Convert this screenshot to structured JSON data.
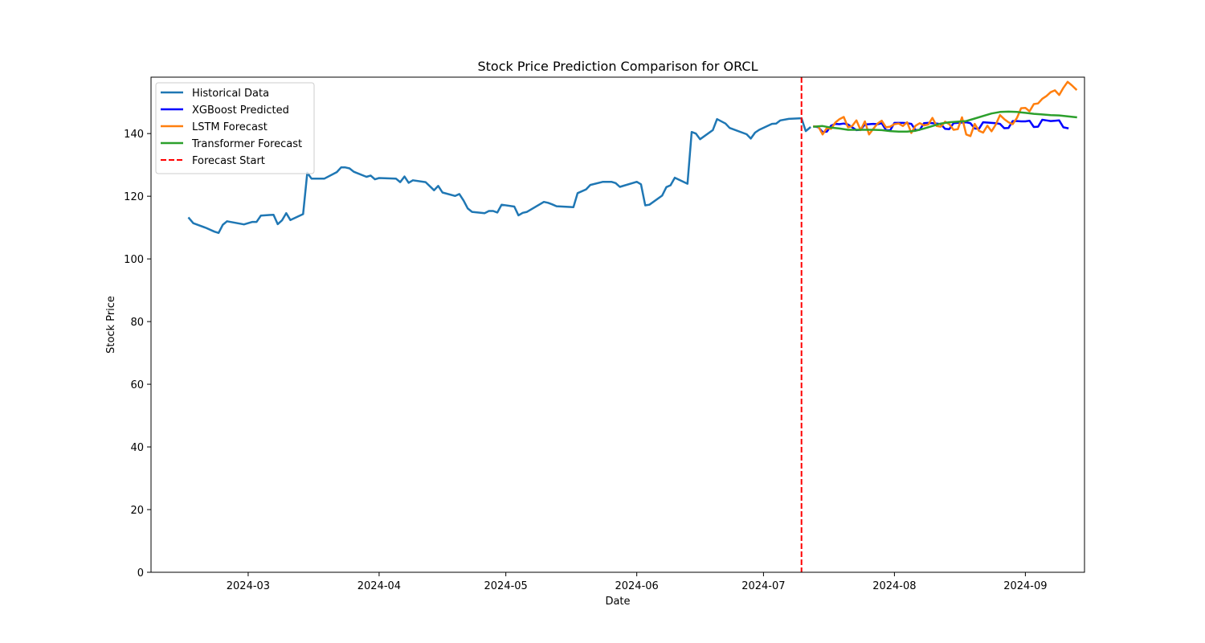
{
  "chart_data": {
    "type": "line",
    "title": "Stock Price Prediction Comparison for ORCL",
    "xlabel": "Date",
    "ylabel": "Stock Price",
    "xlim": [
      "2024-02-07",
      "2024-09-15"
    ],
    "ylim": [
      0,
      158
    ],
    "x_ticks": [
      "2024-03",
      "2024-04",
      "2024-05",
      "2024-06",
      "2024-07",
      "2024-08",
      "2024-09"
    ],
    "y_ticks": [
      0,
      20,
      40,
      60,
      80,
      100,
      120,
      140
    ],
    "grid": false,
    "legend_position": "top-left",
    "forecast_start": {
      "name": "Forecast Start",
      "x": "2024-07-10",
      "color": "#ff0000",
      "style": "dashed"
    },
    "series": [
      {
        "name": "Historical Data",
        "color": "#1f77b4",
        "points": [
          [
            "2024-02-16",
            113.0
          ],
          [
            "2024-02-17",
            111.4
          ],
          [
            "2024-02-20",
            109.9
          ],
          [
            "2024-02-22",
            108.7
          ],
          [
            "2024-02-23",
            108.3
          ],
          [
            "2024-02-24",
            110.9
          ],
          [
            "2024-02-25",
            112.0
          ],
          [
            "2024-02-29",
            111.0
          ],
          [
            "2024-03-02",
            111.8
          ],
          [
            "2024-03-03",
            111.8
          ],
          [
            "2024-03-04",
            113.8
          ],
          [
            "2024-03-06",
            114.0
          ],
          [
            "2024-03-07",
            114.1
          ],
          [
            "2024-03-08",
            111.1
          ],
          [
            "2024-03-09",
            112.3
          ],
          [
            "2024-03-10",
            114.6
          ],
          [
            "2024-03-11",
            112.4
          ],
          [
            "2024-03-14",
            114.3
          ],
          [
            "2024-03-15",
            127.5
          ],
          [
            "2024-03-16",
            125.6
          ],
          [
            "2024-03-19",
            125.6
          ],
          [
            "2024-03-22",
            127.7
          ],
          [
            "2024-03-23",
            129.2
          ],
          [
            "2024-03-24",
            129.2
          ],
          [
            "2024-03-25",
            128.9
          ],
          [
            "2024-03-26",
            127.8
          ],
          [
            "2024-03-29",
            126.2
          ],
          [
            "2024-03-30",
            126.6
          ],
          [
            "2024-03-31",
            125.4
          ],
          [
            "2024-04-01",
            125.8
          ],
          [
            "2024-04-05",
            125.6
          ],
          [
            "2024-04-06",
            124.5
          ],
          [
            "2024-04-07",
            126.3
          ],
          [
            "2024-04-08",
            124.3
          ],
          [
            "2024-04-09",
            125.1
          ],
          [
            "2024-04-12",
            124.5
          ],
          [
            "2024-04-14",
            121.9
          ],
          [
            "2024-04-15",
            123.3
          ],
          [
            "2024-04-16",
            121.2
          ],
          [
            "2024-04-19",
            120.1
          ],
          [
            "2024-04-20",
            120.7
          ],
          [
            "2024-04-21",
            118.6
          ],
          [
            "2024-04-22",
            116.1
          ],
          [
            "2024-04-23",
            115.0
          ],
          [
            "2024-04-26",
            114.6
          ],
          [
            "2024-04-27",
            115.3
          ],
          [
            "2024-04-28",
            115.3
          ],
          [
            "2024-04-29",
            114.8
          ],
          [
            "2024-04-30",
            117.3
          ],
          [
            "2024-05-03",
            116.7
          ],
          [
            "2024-05-04",
            113.9
          ],
          [
            "2024-05-05",
            114.7
          ],
          [
            "2024-05-06",
            115.0
          ],
          [
            "2024-05-10",
            118.2
          ],
          [
            "2024-05-11",
            117.9
          ],
          [
            "2024-05-12",
            117.4
          ],
          [
            "2024-05-13",
            116.8
          ],
          [
            "2024-05-17",
            116.5
          ],
          [
            "2024-05-18",
            121.0
          ],
          [
            "2024-05-20",
            122.2
          ],
          [
            "2024-05-21",
            123.6
          ],
          [
            "2024-05-24",
            124.6
          ],
          [
            "2024-05-26",
            124.6
          ],
          [
            "2024-05-27",
            124.2
          ],
          [
            "2024-05-28",
            123.0
          ],
          [
            "2024-06-01",
            124.6
          ],
          [
            "2024-06-02",
            123.8
          ],
          [
            "2024-06-03",
            117.1
          ],
          [
            "2024-06-04",
            117.3
          ],
          [
            "2024-06-07",
            120.2
          ],
          [
            "2024-06-08",
            122.9
          ],
          [
            "2024-06-09",
            123.5
          ],
          [
            "2024-06-10",
            125.9
          ],
          [
            "2024-06-13",
            124.0
          ],
          [
            "2024-06-14",
            140.5
          ],
          [
            "2024-06-15",
            140.0
          ],
          [
            "2024-06-16",
            138.2
          ],
          [
            "2024-06-19",
            141.1
          ],
          [
            "2024-06-20",
            144.6
          ],
          [
            "2024-06-22",
            143.2
          ],
          [
            "2024-06-23",
            141.8
          ],
          [
            "2024-06-27",
            139.8
          ],
          [
            "2024-06-28",
            138.4
          ],
          [
            "2024-06-29",
            140.3
          ],
          [
            "2024-06-30",
            141.2
          ],
          [
            "2024-07-03",
            143.1
          ],
          [
            "2024-07-04",
            143.2
          ],
          [
            "2024-07-05",
            144.2
          ],
          [
            "2024-07-07",
            144.7
          ],
          [
            "2024-07-10",
            144.9
          ],
          [
            "2024-07-11",
            140.8
          ],
          [
            "2024-07-12",
            141.9
          ]
        ]
      },
      {
        "name": "XGBoost Predicted",
        "color": "#0000ff",
        "points": [
          [
            "2024-07-13",
            142.3
          ],
          [
            "2024-07-14",
            142.0
          ],
          [
            "2024-07-15",
            140.5
          ],
          [
            "2024-07-16",
            140.6
          ],
          [
            "2024-07-17",
            142.5
          ],
          [
            "2024-07-18",
            143.1
          ],
          [
            "2024-07-19",
            143.0
          ],
          [
            "2024-07-20",
            143.2
          ],
          [
            "2024-07-21",
            142.9
          ],
          [
            "2024-07-22",
            142.0
          ],
          [
            "2024-07-23",
            141.1
          ],
          [
            "2024-07-24",
            141.2
          ],
          [
            "2024-07-25",
            142.9
          ],
          [
            "2024-07-26",
            143.0
          ],
          [
            "2024-07-27",
            143.1
          ],
          [
            "2024-07-28",
            143.0
          ],
          [
            "2024-07-29",
            143.3
          ],
          [
            "2024-07-30",
            141.1
          ],
          [
            "2024-07-31",
            141.0
          ],
          [
            "2024-08-01",
            143.4
          ],
          [
            "2024-08-02",
            143.4
          ],
          [
            "2024-08-03",
            143.4
          ],
          [
            "2024-08-04",
            143.3
          ],
          [
            "2024-08-05",
            143.1
          ],
          [
            "2024-08-06",
            141.1
          ],
          [
            "2024-08-07",
            141.2
          ],
          [
            "2024-08-08",
            143.3
          ],
          [
            "2024-08-09",
            143.4
          ],
          [
            "2024-08-10",
            143.3
          ],
          [
            "2024-08-11",
            143.2
          ],
          [
            "2024-08-12",
            143.0
          ],
          [
            "2024-08-13",
            141.5
          ],
          [
            "2024-08-14",
            141.4
          ],
          [
            "2024-08-15",
            143.3
          ],
          [
            "2024-08-16",
            143.4
          ],
          [
            "2024-08-17",
            143.5
          ],
          [
            "2024-08-18",
            143.6
          ],
          [
            "2024-08-19",
            143.3
          ],
          [
            "2024-08-20",
            141.6
          ],
          [
            "2024-08-21",
            141.5
          ],
          [
            "2024-08-22",
            143.6
          ],
          [
            "2024-08-23",
            143.5
          ],
          [
            "2024-08-24",
            143.4
          ],
          [
            "2024-08-25",
            143.3
          ],
          [
            "2024-08-26",
            143.1
          ],
          [
            "2024-08-27",
            141.7
          ],
          [
            "2024-08-28",
            141.8
          ],
          [
            "2024-08-29",
            144.0
          ],
          [
            "2024-08-30",
            144.0
          ],
          [
            "2024-08-31",
            143.9
          ],
          [
            "2024-09-01",
            143.9
          ],
          [
            "2024-09-02",
            144.1
          ],
          [
            "2024-09-03",
            142.1
          ],
          [
            "2024-09-04",
            142.2
          ],
          [
            "2024-09-05",
            144.4
          ],
          [
            "2024-09-06",
            144.2
          ],
          [
            "2024-09-07",
            144.0
          ],
          [
            "2024-09-08",
            144.1
          ],
          [
            "2024-09-09",
            144.2
          ],
          [
            "2024-09-10",
            142.0
          ],
          [
            "2024-09-11",
            141.7
          ]
        ]
      },
      {
        "name": "LSTM Forecast",
        "color": "#ff7f0e",
        "points": [
          [
            "2024-07-13",
            142.3
          ],
          [
            "2024-07-14",
            142.2
          ],
          [
            "2024-07-15",
            139.7
          ],
          [
            "2024-07-16",
            141.8
          ],
          [
            "2024-07-17",
            141.5
          ],
          [
            "2024-07-18",
            143.5
          ],
          [
            "2024-07-19",
            144.6
          ],
          [
            "2024-07-20",
            145.3
          ],
          [
            "2024-07-21",
            142.0
          ],
          [
            "2024-07-22",
            142.4
          ],
          [
            "2024-07-23",
            144.2
          ],
          [
            "2024-07-24",
            141.1
          ],
          [
            "2024-07-25",
            143.9
          ],
          [
            "2024-07-26",
            139.7
          ],
          [
            "2024-07-27",
            141.5
          ],
          [
            "2024-07-28",
            143.2
          ],
          [
            "2024-07-29",
            144.1
          ],
          [
            "2024-07-30",
            142.0
          ],
          [
            "2024-07-31",
            142.2
          ],
          [
            "2024-08-01",
            143.0
          ],
          [
            "2024-08-02",
            143.2
          ],
          [
            "2024-08-03",
            142.4
          ],
          [
            "2024-08-04",
            143.6
          ],
          [
            "2024-08-05",
            140.2
          ],
          [
            "2024-08-06",
            142.5
          ],
          [
            "2024-08-07",
            143.3
          ],
          [
            "2024-08-08",
            142.6
          ],
          [
            "2024-08-09",
            142.9
          ],
          [
            "2024-08-10",
            145.0
          ],
          [
            "2024-08-11",
            142.4
          ],
          [
            "2024-08-12",
            142.2
          ],
          [
            "2024-08-13",
            143.8
          ],
          [
            "2024-08-14",
            143.0
          ],
          [
            "2024-08-15",
            141.2
          ],
          [
            "2024-08-16",
            141.4
          ],
          [
            "2024-08-17",
            145.2
          ],
          [
            "2024-08-18",
            139.7
          ],
          [
            "2024-08-19",
            139.2
          ],
          [
            "2024-08-20",
            143.1
          ],
          [
            "2024-08-21",
            140.9
          ],
          [
            "2024-08-22",
            140.3
          ],
          [
            "2024-08-23",
            142.5
          ],
          [
            "2024-08-24",
            140.7
          ],
          [
            "2024-08-25",
            142.9
          ],
          [
            "2024-08-26",
            145.9
          ],
          [
            "2024-08-27",
            144.6
          ],
          [
            "2024-08-28",
            143.6
          ],
          [
            "2024-08-29",
            143.0
          ],
          [
            "2024-08-30",
            145.0
          ],
          [
            "2024-08-31",
            148.1
          ],
          [
            "2024-09-01",
            148.2
          ],
          [
            "2024-09-02",
            147.1
          ],
          [
            "2024-09-03",
            149.4
          ],
          [
            "2024-09-04",
            149.6
          ],
          [
            "2024-09-05",
            151.1
          ],
          [
            "2024-09-06",
            152.0
          ],
          [
            "2024-09-07",
            153.2
          ],
          [
            "2024-09-08",
            153.8
          ],
          [
            "2024-09-09",
            152.3
          ],
          [
            "2024-09-10",
            154.6
          ],
          [
            "2024-09-11",
            156.5
          ],
          [
            "2024-09-12",
            155.4
          ],
          [
            "2024-09-13",
            154.1
          ]
        ]
      },
      {
        "name": "Transformer Forecast",
        "color": "#2ca02c",
        "points": [
          [
            "2024-07-13",
            142.2
          ],
          [
            "2024-07-15",
            142.4
          ],
          [
            "2024-07-17",
            141.9
          ],
          [
            "2024-07-19",
            141.6
          ],
          [
            "2024-07-21",
            141.2
          ],
          [
            "2024-07-23",
            141.2
          ],
          [
            "2024-07-25",
            141.2
          ],
          [
            "2024-07-27",
            141.2
          ],
          [
            "2024-07-29",
            141.1
          ],
          [
            "2024-07-31",
            140.8
          ],
          [
            "2024-08-02",
            140.6
          ],
          [
            "2024-08-04",
            140.6
          ],
          [
            "2024-08-06",
            140.9
          ],
          [
            "2024-08-08",
            141.6
          ],
          [
            "2024-08-10",
            142.4
          ],
          [
            "2024-08-12",
            143.2
          ],
          [
            "2024-08-14",
            143.6
          ],
          [
            "2024-08-16",
            143.8
          ],
          [
            "2024-08-18",
            144.0
          ],
          [
            "2024-08-20",
            144.8
          ],
          [
            "2024-08-22",
            145.6
          ],
          [
            "2024-08-24",
            146.4
          ],
          [
            "2024-08-26",
            146.9
          ],
          [
            "2024-08-28",
            147.0
          ],
          [
            "2024-08-30",
            146.9
          ],
          [
            "2024-09-01",
            146.6
          ],
          [
            "2024-09-03",
            146.3
          ],
          [
            "2024-09-05",
            146.1
          ],
          [
            "2024-09-07",
            145.9
          ],
          [
            "2024-09-09",
            145.8
          ],
          [
            "2024-09-11",
            145.5
          ],
          [
            "2024-09-13",
            145.2
          ]
        ]
      }
    ]
  }
}
